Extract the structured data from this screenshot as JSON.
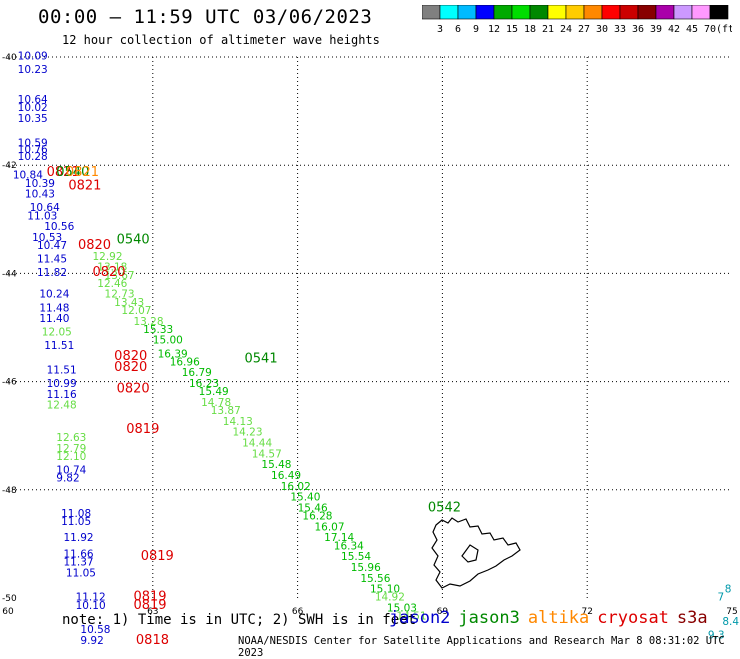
{
  "header": {
    "title": "00:00 – 11:59 UTC 03/06/2023",
    "subtitle": "12 hour collection of altimeter wave heights"
  },
  "colorbar": {
    "colors": [
      "#808080",
      "#00ffff",
      "#00bbff",
      "#0000ff",
      "#00aa00",
      "#00dd00",
      "#008800",
      "#ffff00",
      "#ffcc00",
      "#ff8800",
      "#ff0000",
      "#cc0000",
      "#880000",
      "#aa00aa",
      "#cc99ff",
      "#ff99ff",
      "#000000"
    ],
    "labels": [
      "3",
      "6",
      "9",
      "12",
      "15",
      "18",
      "21",
      "24",
      "27",
      "30",
      "33",
      "36",
      "39",
      "42",
      "45",
      "70",
      "(ft)"
    ]
  },
  "map": {
    "lon_range": [
      60,
      75
    ],
    "lat_range": [
      -50,
      -40
    ],
    "x_labels": [
      "60",
      "63",
      "66",
      "69",
      "72",
      "75"
    ],
    "y_labels": [
      "-40",
      "-42",
      "-44",
      "-46",
      "-48",
      "-50"
    ],
    "sat_colors": {
      "jason2": "#0000cc",
      "jason3": "#008800",
      "altika": "#ff8800",
      "cryosat": "#dd0000",
      "s3a": "#880000",
      "swh_light": "#66dd44",
      "swh_mid": "#00bb00",
      "swh_blue": "#0000cc",
      "cyan": "#0099aa"
    }
  },
  "track_a": [
    {
      "lon": 60.2,
      "lat": -40.05,
      "v": "10.09",
      "c": "swh_blue"
    },
    {
      "lon": 60.2,
      "lat": -40.3,
      "v": "10.23",
      "c": "swh_blue"
    },
    {
      "lon": 60.2,
      "lat": -40.85,
      "v": "10.64",
      "c": "swh_blue"
    },
    {
      "lon": 60.2,
      "lat": -41.0,
      "v": "10.02",
      "c": "swh_blue"
    },
    {
      "lon": 60.2,
      "lat": -41.2,
      "v": "10.35",
      "c": "swh_blue"
    },
    {
      "lon": 60.2,
      "lat": -41.65,
      "v": "10.59",
      "c": "swh_blue"
    },
    {
      "lon": 60.2,
      "lat": -41.77,
      "v": "10.76",
      "c": "swh_blue"
    },
    {
      "lon": 60.2,
      "lat": -41.9,
      "v": "10.28",
      "c": "swh_blue"
    },
    {
      "lon": 60.1,
      "lat": -42.25,
      "v": "10.84",
      "c": "swh_blue"
    },
    {
      "lon": 60.35,
      "lat": -42.4,
      "v": "10.39",
      "c": "swh_blue"
    },
    {
      "lon": 60.35,
      "lat": -42.6,
      "v": "10.43",
      "c": "swh_blue"
    },
    {
      "lon": 60.45,
      "lat": -42.85,
      "v": "10.64",
      "c": "swh_blue"
    },
    {
      "lon": 60.4,
      "lat": -43.0,
      "v": "11.03",
      "c": "swh_blue"
    },
    {
      "lon": 60.75,
      "lat": -43.2,
      "v": "10.56",
      "c": "swh_blue"
    },
    {
      "lon": 60.5,
      "lat": -43.4,
      "v": "10.53",
      "c": "swh_blue"
    },
    {
      "lon": 60.6,
      "lat": -43.55,
      "v": "10.47",
      "c": "swh_blue"
    },
    {
      "lon": 60.6,
      "lat": -43.8,
      "v": "11.45",
      "c": "swh_blue"
    },
    {
      "lon": 60.6,
      "lat": -44.05,
      "v": "11.82",
      "c": "swh_blue"
    },
    {
      "lon": 60.65,
      "lat": -44.45,
      "v": "10.24",
      "c": "swh_blue"
    },
    {
      "lon": 60.65,
      "lat": -44.7,
      "v": "11.48",
      "c": "swh_blue"
    },
    {
      "lon": 60.65,
      "lat": -44.9,
      "v": "11.40",
      "c": "swh_blue"
    },
    {
      "lon": 60.7,
      "lat": -45.15,
      "v": "12.05",
      "c": "swh_light"
    },
    {
      "lon": 60.75,
      "lat": -45.4,
      "v": "11.51",
      "c": "swh_blue"
    },
    {
      "lon": 60.8,
      "lat": -45.85,
      "v": "11.51",
      "c": "swh_blue"
    },
    {
      "lon": 60.8,
      "lat": -46.1,
      "v": "10.99",
      "c": "swh_blue"
    },
    {
      "lon": 60.8,
      "lat": -46.3,
      "v": "11.16",
      "c": "swh_blue"
    },
    {
      "lon": 60.8,
      "lat": -46.5,
      "v": "12.48",
      "c": "swh_light"
    },
    {
      "lon": 61.0,
      "lat": -47.1,
      "v": "12.63",
      "c": "swh_light"
    },
    {
      "lon": 61.0,
      "lat": -47.3,
      "v": "12.79",
      "c": "swh_light"
    },
    {
      "lon": 61.0,
      "lat": -47.45,
      "v": "12.10",
      "c": "swh_light"
    },
    {
      "lon": 61.0,
      "lat": -47.7,
      "v": "10.74",
      "c": "swh_blue"
    },
    {
      "lon": 61.0,
      "lat": -47.85,
      "v": "9.82",
      "c": "swh_blue"
    },
    {
      "lon": 61.1,
      "lat": -48.5,
      "v": "11.08",
      "c": "swh_blue"
    },
    {
      "lon": 61.1,
      "lat": -48.65,
      "v": "11.05",
      "c": "swh_blue"
    },
    {
      "lon": 61.15,
      "lat": -48.95,
      "v": "11.92",
      "c": "swh_blue"
    },
    {
      "lon": 61.15,
      "lat": -49.25,
      "v": "11.66",
      "c": "swh_blue"
    },
    {
      "lon": 61.15,
      "lat": -49.4,
      "v": "11.37",
      "c": "swh_blue"
    },
    {
      "lon": 61.2,
      "lat": -49.6,
      "v": "11.05",
      "c": "swh_blue"
    },
    {
      "lon": 61.4,
      "lat": -50.05,
      "v": "11.12",
      "c": "swh_blue"
    },
    {
      "lon": 61.4,
      "lat": -50.2,
      "v": "10.10",
      "c": "swh_blue"
    },
    {
      "lon": 61.5,
      "lat": -50.65,
      "v": "10.58",
      "c": "swh_blue"
    },
    {
      "lon": 61.5,
      "lat": -50.85,
      "v": "9.92",
      "c": "swh_blue"
    }
  ],
  "track_b": [
    {
      "lon": 61.75,
      "lat": -43.75,
      "v": "12.92"
    },
    {
      "lon": 61.85,
      "lat": -43.95,
      "v": "13.18"
    },
    {
      "lon": 62.0,
      "lat": -44.1,
      "v": "13.67"
    },
    {
      "lon": 61.85,
      "lat": -44.25,
      "v": "12.46"
    },
    {
      "lon": 62.0,
      "lat": -44.45,
      "v": "12.73"
    },
    {
      "lon": 62.2,
      "lat": -44.6,
      "v": "13.43"
    },
    {
      "lon": 62.35,
      "lat": -44.75,
      "v": "12.07"
    },
    {
      "lon": 62.6,
      "lat": -44.95,
      "v": "13.28"
    },
    {
      "lon": 62.8,
      "lat": -45.1,
      "v": "15.33"
    },
    {
      "lon": 63.0,
      "lat": -45.3,
      "v": "15.00"
    },
    {
      "lon": 63.1,
      "lat": -45.55,
      "v": "16.39"
    },
    {
      "lon": 63.35,
      "lat": -45.7,
      "v": "16.96"
    },
    {
      "lon": 63.6,
      "lat": -45.9,
      "v": "16.79"
    },
    {
      "lon": 63.75,
      "lat": -46.1,
      "v": "16.23"
    },
    {
      "lon": 63.95,
      "lat": -46.25,
      "v": "15.49"
    },
    {
      "lon": 64.0,
      "lat": -46.45,
      "v": "14.78"
    },
    {
      "lon": 64.2,
      "lat": -46.6,
      "v": "13.87"
    },
    {
      "lon": 64.45,
      "lat": -46.8,
      "v": "14.13"
    },
    {
      "lon": 64.65,
      "lat": -47.0,
      "v": "14.23"
    },
    {
      "lon": 64.85,
      "lat": -47.2,
      "v": "14.44"
    },
    {
      "lon": 65.05,
      "lat": -47.4,
      "v": "14.57"
    },
    {
      "lon": 65.25,
      "lat": -47.6,
      "v": "15.48"
    },
    {
      "lon": 65.45,
      "lat": -47.8,
      "v": "16.49"
    },
    {
      "lon": 65.65,
      "lat": -48.0,
      "v": "16.02"
    },
    {
      "lon": 65.85,
      "lat": -48.2,
      "v": "15.40"
    },
    {
      "lon": 66.0,
      "lat": -48.4,
      "v": "15.46"
    },
    {
      "lon": 66.1,
      "lat": -48.55,
      "v": "16.28"
    },
    {
      "lon": 66.35,
      "lat": -48.75,
      "v": "16.07"
    },
    {
      "lon": 66.55,
      "lat": -48.95,
      "v": "17.14"
    },
    {
      "lon": 66.75,
      "lat": -49.1,
      "v": "16.34"
    },
    {
      "lon": 66.9,
      "lat": -49.3,
      "v": "15.54"
    },
    {
      "lon": 67.1,
      "lat": -49.5,
      "v": "15.96"
    },
    {
      "lon": 67.3,
      "lat": -49.7,
      "v": "15.56"
    },
    {
      "lon": 67.5,
      "lat": -49.9,
      "v": "15.10"
    },
    {
      "lon": 67.6,
      "lat": -50.05,
      "v": "14.92"
    },
    {
      "lon": 67.85,
      "lat": -50.25,
      "v": "15.03"
    },
    {
      "lon": 68.05,
      "lat": -50.4,
      "v": "14.51"
    }
  ],
  "times": [
    {
      "lon": 60.8,
      "lat": -42.2,
      "t": "0821",
      "c": "cryosat"
    },
    {
      "lon": 61.0,
      "lat": -42.2,
      "t": "0540",
      "c": "jason3"
    },
    {
      "lon": 61.2,
      "lat": -42.2,
      "t": "0821",
      "c": "altika"
    },
    {
      "lon": 61.25,
      "lat": -42.45,
      "t": "0821",
      "c": "cryosat"
    },
    {
      "lon": 62.25,
      "lat": -43.45,
      "t": "0540",
      "c": "jason3"
    },
    {
      "lon": 61.45,
      "lat": -43.55,
      "t": "0820",
      "c": "cryosat"
    },
    {
      "lon": 61.75,
      "lat": -44.05,
      "t": "0820",
      "c": "cryosat"
    },
    {
      "lon": 64.9,
      "lat": -45.65,
      "t": "0541",
      "c": "jason3"
    },
    {
      "lon": 62.2,
      "lat": -45.6,
      "t": "0820",
      "c": "cryosat"
    },
    {
      "lon": 62.2,
      "lat": -45.8,
      "t": "0820",
      "c": "cryosat"
    },
    {
      "lon": 62.25,
      "lat": -46.2,
      "t": "0820",
      "c": "cryosat"
    },
    {
      "lon": 62.45,
      "lat": -46.95,
      "t": "0819",
      "c": "cryosat"
    },
    {
      "lon": 68.7,
      "lat": -48.4,
      "t": "0542",
      "c": "jason3"
    },
    {
      "lon": 62.75,
      "lat": -49.3,
      "t": "0819",
      "c": "cryosat"
    },
    {
      "lon": 62.6,
      "lat": -50.05,
      "t": "0819",
      "c": "cryosat"
    },
    {
      "lon": 62.6,
      "lat": -50.2,
      "t": "0819",
      "c": "cryosat"
    },
    {
      "lon": 62.65,
      "lat": -50.85,
      "t": "0818",
      "c": "cryosat"
    }
  ],
  "edge_labels": [
    {
      "lon": 74.85,
      "lat": -49.9,
      "v": "8",
      "c": "cyan"
    },
    {
      "lon": 74.7,
      "lat": -50.05,
      "v": "7",
      "c": "cyan"
    },
    {
      "lon": 74.8,
      "lat": -50.5,
      "v": "8.4",
      "c": "cyan"
    },
    {
      "lon": 74.5,
      "lat": -50.75,
      "v": "9.3",
      "c": "cyan"
    }
  ],
  "footer": {
    "note": "note: 1) Time is in UTC; 2) SWH is in feet",
    "satellites": [
      {
        "name": "jason2",
        "color": "#0000cc"
      },
      {
        "name": "jason3",
        "color": "#008800"
      },
      {
        "name": "altika",
        "color": "#ff8800"
      },
      {
        "name": "cryosat",
        "color": "#dd0000"
      },
      {
        "name": "s3a",
        "color": "#880000"
      }
    ],
    "credit": "NOAA/NESDIS Center for Satellite Applications and Research    Mar  8 08:31:02 UTC 2023"
  }
}
